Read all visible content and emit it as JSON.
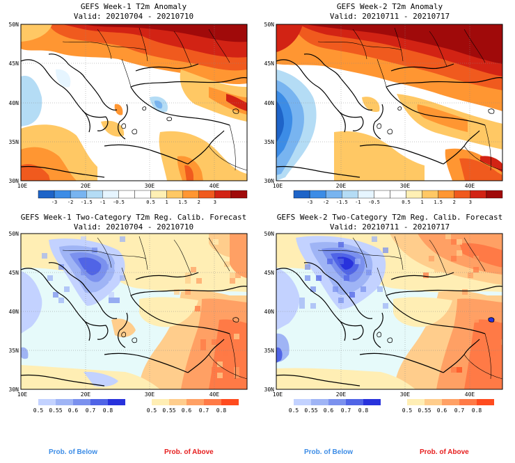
{
  "panels": [
    {
      "id": "w1-anom",
      "title": "GEFS Week-1 T2m Anomaly",
      "valid": "Valid: 20210704 - 20210710",
      "lat_labels": [
        "50N",
        "45N",
        "40N",
        "35N",
        "30N"
      ],
      "lon_labels": [
        "10E",
        "20E",
        "30E",
        "40E"
      ],
      "colorbar": "anom"
    },
    {
      "id": "w2-anom",
      "title": "GEFS Week-2 T2m Anomaly",
      "valid": "Valid: 20210711 - 20210717",
      "lat_labels": [
        "50N",
        "45N",
        "40N",
        "35N",
        "30N"
      ],
      "lon_labels": [
        "10E",
        "20E",
        "30E",
        "40E"
      ],
      "colorbar": "anom"
    },
    {
      "id": "w1-prob",
      "title": "GEFS Week-1 Two-Category T2m Reg. Calib. Forecast",
      "valid": "Valid: 20210704 - 20210710",
      "lat_labels": [
        "50N",
        "45N",
        "40N",
        "35N",
        "30N"
      ],
      "lon_labels": [
        "10E",
        "20E",
        "30E",
        "40E"
      ],
      "colorbar": "prob"
    },
    {
      "id": "w2-prob",
      "title": "GEFS Week-2 Two-Category T2m Reg. Calib. Forecast",
      "valid": "Valid: 20210711 - 20210717",
      "lat_labels": [
        "50N",
        "45N",
        "40N",
        "35N",
        "30N"
      ],
      "lon_labels": [
        "10E",
        "20E",
        "30E",
        "40E"
      ],
      "colorbar": "prob"
    }
  ],
  "anomaly_scale": {
    "colors": [
      "#1e64c8",
      "#3c8ce6",
      "#78b4f0",
      "#b4dcf5",
      "#e6f5ff",
      "#ffffff",
      "#ffffff",
      "#fff0b4",
      "#ffc864",
      "#ff9632",
      "#f05a1e",
      "#d22314",
      "#a00a0a"
    ],
    "labels": [
      "-3",
      "-2",
      "-1.5",
      "-1",
      "-0.5",
      "0.5",
      "1",
      "1.5",
      "2",
      "3"
    ]
  },
  "prob_below_scale": {
    "colors": [
      "#c3d2ff",
      "#9fb4f5",
      "#7b91ee",
      "#5064e6",
      "#2832dc"
    ],
    "labels": [
      "0.5",
      "0.55",
      "0.6",
      "0.7",
      "0.8"
    ]
  },
  "prob_above_scale": {
    "colors": [
      "#ffeeb4",
      "#ffcd8c",
      "#ffa064",
      "#ff7a46",
      "#ff4b1e"
    ],
    "labels": [
      "0.5",
      "0.55",
      "0.6",
      "0.7",
      "0.8"
    ]
  },
  "legend": {
    "below_label": "Prob. of Below",
    "above_label": "Prob. of Above",
    "below_color": "#3c8ce6",
    "above_color": "#e61e1e"
  },
  "map_colors": {
    "sea_neutral": "#e6fafa",
    "land_neutral": "#ffffff",
    "coast": "#000000"
  }
}
